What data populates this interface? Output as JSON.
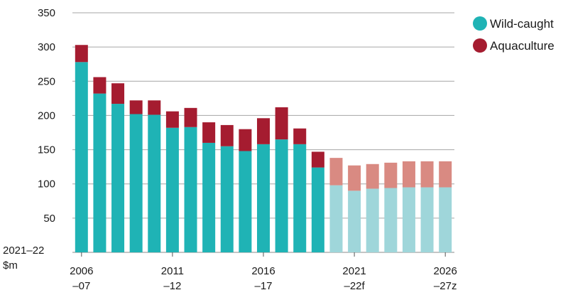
{
  "chart_data": {
    "type": "bar",
    "stacked": true,
    "ylabel": "2021–22\n$m",
    "ylim": [
      0,
      350
    ],
    "yticks": [
      50,
      100,
      150,
      200,
      250,
      300,
      350
    ],
    "grid": true,
    "legend_position": "top-right",
    "categories": [
      "2006–07",
      "2007–08",
      "2008–09",
      "2009–10",
      "2010–11",
      "2011–12",
      "2012–13",
      "2013–14",
      "2014–15",
      "2015–16",
      "2016–17",
      "2017–18",
      "2018–19",
      "2019–20",
      "2020–21",
      "2021–22f",
      "2022–23f",
      "2023–24f",
      "2024–25f",
      "2025–26f",
      "2026–27z"
    ],
    "xtick_labels": [
      {
        "index": 0,
        "line1": "2006",
        "line2": "–07"
      },
      {
        "index": 5,
        "line1": "2011",
        "line2": "–12"
      },
      {
        "index": 10,
        "line1": "2016",
        "line2": "–17"
      },
      {
        "index": 15,
        "line1": "2021",
        "line2": "–22f"
      },
      {
        "index": 20,
        "line1": "2026",
        "line2": "–27z"
      }
    ],
    "forecast_start_index": 14,
    "series": [
      {
        "name": "Wild-caught",
        "color": "#1fb3b5",
        "forecast_color": "#9fd6da",
        "values": [
          278,
          232,
          217,
          202,
          201,
          182,
          183,
          160,
          155,
          148,
          158,
          165,
          158,
          124,
          98,
          90,
          93,
          94,
          95,
          95,
          95
        ]
      },
      {
        "name": "Aquaculture",
        "color": "#a51c30",
        "forecast_color": "#d98a82",
        "values": [
          25,
          24,
          30,
          20,
          21,
          24,
          28,
          30,
          31,
          32,
          38,
          47,
          23,
          23,
          40,
          37,
          36,
          37,
          38,
          38,
          38
        ]
      }
    ]
  }
}
